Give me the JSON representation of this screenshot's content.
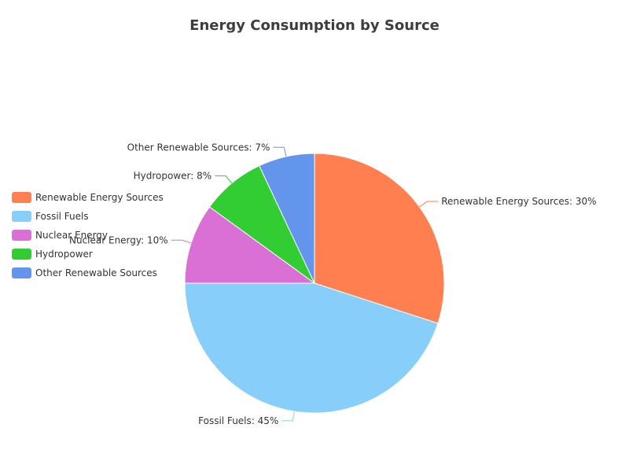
{
  "chart_data": {
    "type": "pie",
    "title": "Energy Consumption by Source",
    "legend_position": "left",
    "slices": [
      {
        "name": "Renewable Energy Sources",
        "value": 30,
        "label": "Renewable Energy Sources: 30%",
        "color": "#ff7f50"
      },
      {
        "name": "Fossil Fuels",
        "value": 45,
        "label": "Fossil Fuels: 45%",
        "color": "#87cefa"
      },
      {
        "name": "Nuclear Energy",
        "value": 10,
        "label": "Nuclear Energy: 10%",
        "color": "#da70d6"
      },
      {
        "name": "Hydropower",
        "value": 8,
        "label": "Hydropower: 8%",
        "color": "#32cd32"
      },
      {
        "name": "Other Renewable Sources",
        "value": 7,
        "label": "Other Renewable Sources: 7%",
        "color": "#6495ed"
      }
    ]
  }
}
